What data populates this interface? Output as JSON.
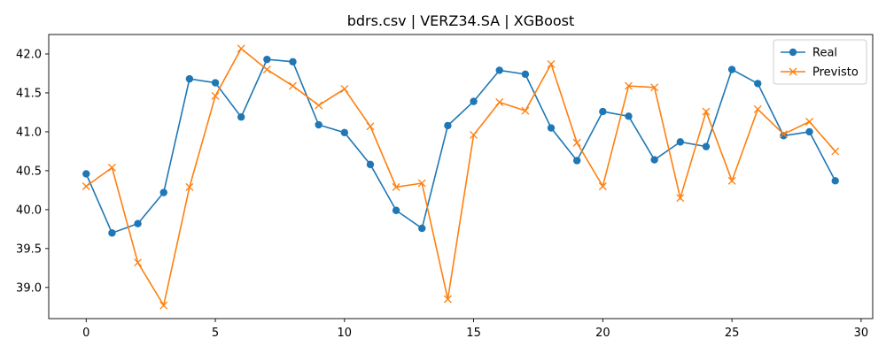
{
  "chart_data": {
    "type": "line",
    "title": "bdrs.csv | VERZ34.SA | XGBoost",
    "xlabel": "",
    "ylabel": "",
    "xlim": [
      -1.45,
      30.45
    ],
    "ylim": [
      38.6,
      42.25
    ],
    "x_ticks": [
      0,
      5,
      10,
      15,
      20,
      25,
      30
    ],
    "y_ticks": [
      39.0,
      39.5,
      40.0,
      40.5,
      41.0,
      41.5,
      42.0
    ],
    "x_tick_labels": [
      "0",
      "5",
      "10",
      "15",
      "20",
      "25",
      "30"
    ],
    "y_tick_labels": [
      "39.0",
      "39.5",
      "40.0",
      "40.5",
      "41.0",
      "41.5",
      "42.0"
    ],
    "grid": false,
    "legend_position": "top-right",
    "x": [
      0,
      1,
      2,
      3,
      4,
      5,
      6,
      7,
      8,
      9,
      10,
      11,
      12,
      13,
      14,
      15,
      16,
      17,
      18,
      19,
      20,
      21,
      22,
      23,
      24,
      25,
      26,
      27,
      28,
      29
    ],
    "series": [
      {
        "name": "Real",
        "color": "#1f77b4",
        "marker": "circle",
        "values": [
          40.46,
          39.7,
          39.82,
          40.22,
          41.68,
          41.63,
          41.19,
          41.93,
          41.9,
          41.09,
          40.99,
          40.58,
          39.99,
          39.76,
          41.08,
          41.39,
          41.79,
          41.74,
          41.05,
          40.63,
          41.26,
          41.2,
          40.64,
          40.87,
          40.81,
          41.8,
          41.62,
          40.95,
          41.0,
          40.37
        ]
      },
      {
        "name": "Previsto",
        "color": "#ff7f0e",
        "marker": "x",
        "values": [
          40.3,
          40.54,
          39.32,
          38.77,
          40.29,
          41.46,
          42.07,
          41.8,
          41.59,
          41.34,
          41.55,
          41.07,
          40.29,
          40.34,
          38.85,
          40.96,
          41.38,
          41.27,
          41.87,
          40.86,
          40.3,
          41.59,
          41.57,
          40.15,
          41.26,
          40.37,
          41.29,
          40.97,
          41.13,
          40.75
        ]
      }
    ]
  }
}
